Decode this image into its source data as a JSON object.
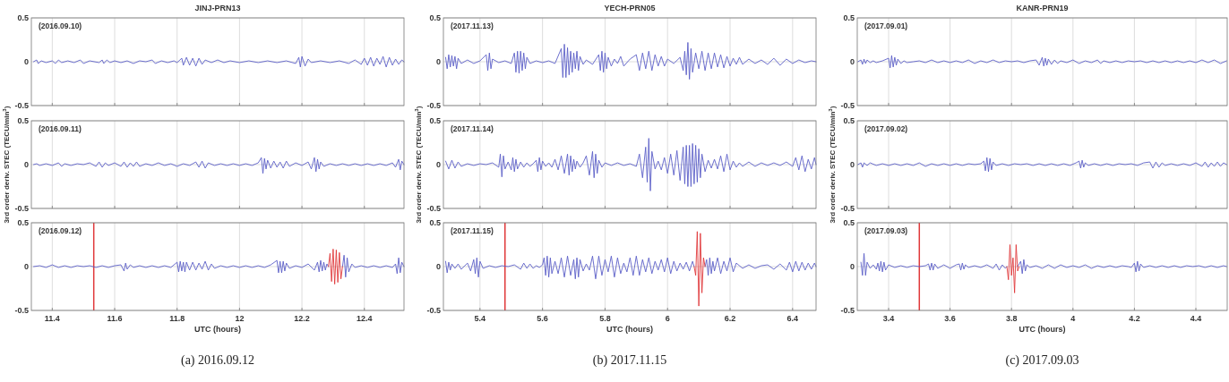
{
  "chart_data": [
    {
      "type": "line",
      "title": "JINJ-PRN13",
      "annotations": [
        "(2016.09.10)"
      ],
      "xlim": [
        11.333,
        12.527
      ],
      "xticks": [
        11.4,
        11.6,
        11.8,
        12,
        12.2,
        12.4
      ],
      "ylim": [
        -0.5,
        0.5
      ],
      "yticks": [
        -0.5,
        0,
        0.5
      ],
      "grid": true,
      "tick_labels": "y",
      "series": [
        {
          "color": "#5b5fc7",
          "x": [
            11.34,
            11.35,
            11.355,
            11.365,
            11.38,
            11.4,
            11.41,
            11.42,
            11.43,
            11.45,
            11.47,
            11.49,
            11.5,
            11.52,
            11.55,
            11.56,
            11.565,
            11.575,
            11.585,
            11.6,
            11.62,
            11.64,
            11.66,
            11.68,
            11.7,
            11.72,
            11.73,
            11.75,
            11.77,
            11.79,
            11.8,
            11.815,
            11.82,
            11.83,
            11.84,
            11.85,
            11.86,
            11.87,
            11.88,
            11.89,
            11.91,
            11.93,
            11.95,
            11.97,
            12.0,
            12.03,
            12.06,
            12.09,
            12.12,
            12.15,
            12.18,
            12.19,
            12.195,
            12.2,
            12.21,
            12.22,
            12.23,
            12.26,
            12.29,
            12.32,
            12.35,
            12.37,
            12.39,
            12.4,
            12.41,
            12.42,
            12.43,
            12.44,
            12.45,
            12.46,
            12.47,
            12.48,
            12.49,
            12.5,
            12.51,
            12.52,
            12.527
          ],
          "values": [
            0,
            0.02,
            -0.02,
            0.01,
            -0.01,
            0.01,
            -0.02,
            0.02,
            -0.01,
            0.01,
            -0.01,
            0.02,
            -0.02,
            0.01,
            -0.01,
            0.02,
            -0.02,
            0.02,
            -0.01,
            0.01,
            -0.01,
            0.01,
            -0.02,
            0.01,
            0,
            0.02,
            -0.02,
            0.01,
            -0.01,
            0.01,
            -0.01,
            0.04,
            -0.04,
            0.05,
            -0.04,
            0.04,
            -0.05,
            0.04,
            -0.03,
            0.02,
            -0.01,
            0.02,
            -0.01,
            0.01,
            -0.01,
            0.01,
            -0.01,
            0.01,
            -0.01,
            0.01,
            -0.02,
            0.05,
            -0.06,
            0.06,
            -0.05,
            0.03,
            -0.01,
            0.01,
            -0.01,
            0.01,
            -0.02,
            0.02,
            -0.03,
            0.04,
            -0.04,
            0.05,
            -0.05,
            0.04,
            -0.03,
            0.06,
            -0.06,
            0.05,
            -0.04,
            0.03,
            -0.03,
            0.02,
            0
          ]
        }
      ]
    },
    {
      "type": "line",
      "title": "YECH-PRN05",
      "annotations": [
        "(2017.11.13)"
      ],
      "xlim": [
        5.283,
        6.475
      ],
      "xticks": [
        5.4,
        5.6,
        5.8,
        6,
        6.2,
        6.4
      ],
      "ylim": [
        -0.5,
        0.5
      ],
      "yticks": [
        -0.5,
        0,
        0.5
      ],
      "grid": true,
      "tick_labels": "y",
      "series": [
        {
          "color": "#5b5fc7",
          "x": [
            5.29,
            5.295,
            5.3,
            5.305,
            5.31,
            5.315,
            5.32,
            5.325,
            5.33,
            5.34,
            5.36,
            5.38,
            5.4,
            5.42,
            5.425,
            5.43,
            5.435,
            5.44,
            5.46,
            5.48,
            5.5,
            5.51,
            5.515,
            5.52,
            5.525,
            5.53,
            5.535,
            5.54,
            5.545,
            5.55,
            5.56,
            5.58,
            5.6,
            5.62,
            5.64,
            5.66,
            5.665,
            5.67,
            5.675,
            5.68,
            5.685,
            5.69,
            5.695,
            5.7,
            5.705,
            5.71,
            5.715,
            5.72,
            5.73,
            5.74,
            5.76,
            5.78,
            5.785,
            5.79,
            5.795,
            5.8,
            5.805,
            5.81,
            5.82,
            5.83,
            5.84,
            5.85,
            5.86,
            5.88,
            5.9,
            5.91,
            5.92,
            5.93,
            5.94,
            5.95,
            5.96,
            5.97,
            5.98,
            5.99,
            6.0,
            6.02,
            6.04,
            6.05,
            6.055,
            6.06,
            6.065,
            6.07,
            6.075,
            6.08,
            6.09,
            6.1,
            6.11,
            6.12,
            6.13,
            6.14,
            6.15,
            6.16,
            6.17,
            6.18,
            6.19,
            6.2,
            6.21,
            6.22,
            6.23,
            6.24,
            6.26,
            6.28,
            6.3,
            6.32,
            6.34,
            6.36,
            6.38,
            6.4,
            6.42,
            6.44,
            6.46,
            6.475
          ],
          "values": [
            0.05,
            -0.08,
            0.08,
            -0.06,
            0.07,
            -0.05,
            0.06,
            -0.08,
            0.04,
            -0.02,
            0.02,
            -0.02,
            0.01,
            0.08,
            -0.1,
            0.1,
            -0.08,
            0.03,
            -0.01,
            0.01,
            -0.02,
            0.1,
            -0.12,
            0.12,
            -0.13,
            0.12,
            -0.1,
            0.1,
            -0.08,
            0.05,
            -0.02,
            0.01,
            -0.01,
            0.01,
            -0.02,
            0.15,
            -0.18,
            0.2,
            -0.18,
            0.16,
            -0.15,
            0.12,
            -0.12,
            0.1,
            -0.08,
            0.12,
            -0.1,
            0.06,
            -0.03,
            0.02,
            -0.03,
            0.08,
            -0.1,
            0.12,
            -0.12,
            0.1,
            -0.08,
            0.05,
            -0.05,
            0.03,
            -0.02,
            0.06,
            -0.05,
            0.03,
            0.08,
            -0.1,
            0.1,
            -0.08,
            0.12,
            -0.1,
            0.08,
            -0.05,
            0.06,
            -0.05,
            0.03,
            -0.02,
            0.05,
            -0.1,
            0.12,
            -0.15,
            0.22,
            -0.2,
            0.15,
            -0.12,
            0.1,
            -0.08,
            0.12,
            -0.1,
            0.1,
            -0.08,
            0.1,
            -0.06,
            0.08,
            -0.07,
            0.06,
            -0.05,
            0.04,
            -0.03,
            0.05,
            -0.03,
            0.03,
            -0.02,
            0.02,
            -0.03,
            0.04,
            -0.04,
            0.03,
            -0.02,
            0.02,
            -0.01,
            0.01,
            0
          ]
        }
      ]
    },
    {
      "type": "line",
      "title": "KANR-PRN19",
      "annotations": [
        "(2017.09.01)"
      ],
      "xlim": [
        3.298,
        4.502
      ],
      "xticks": [
        3.4,
        3.6,
        3.8,
        4,
        4.2,
        4.4
      ],
      "ylim": [
        -0.5,
        0.5
      ],
      "yticks": [
        -0.5,
        0,
        0.5
      ],
      "grid": true,
      "tick_labels": "y",
      "series": [
        {
          "color": "#5b5fc7",
          "x": [
            3.3,
            3.31,
            3.315,
            3.32,
            3.325,
            3.33,
            3.34,
            3.35,
            3.36,
            3.37,
            3.38,
            3.4,
            3.405,
            3.41,
            3.415,
            3.42,
            3.425,
            3.43,
            3.44,
            3.45,
            3.46,
            3.48,
            3.5,
            3.52,
            3.54,
            3.56,
            3.58,
            3.6,
            3.62,
            3.64,
            3.66,
            3.68,
            3.7,
            3.72,
            3.74,
            3.76,
            3.78,
            3.8,
            3.82,
            3.84,
            3.86,
            3.88,
            3.89,
            3.9,
            3.905,
            3.91,
            3.915,
            3.92,
            3.93,
            3.94,
            3.95,
            3.96,
            3.98,
            4.0,
            4.02,
            4.04,
            4.06,
            4.08,
            4.09,
            4.1,
            4.12,
            4.14,
            4.16,
            4.18,
            4.2,
            4.22,
            4.24,
            4.26,
            4.28,
            4.3,
            4.32,
            4.34,
            4.36,
            4.38,
            4.4,
            4.42,
            4.44,
            4.46,
            4.48,
            4.5
          ],
          "values": [
            0,
            0.02,
            -0.03,
            0.03,
            -0.02,
            0.02,
            -0.01,
            0.01,
            -0.01,
            0,
            0.01,
            0.04,
            -0.07,
            0.07,
            -0.06,
            0.05,
            -0.04,
            0.03,
            -0.02,
            0.01,
            -0.01,
            0,
            0.01,
            -0.01,
            0.02,
            -0.01,
            0.01,
            -0.01,
            0.01,
            -0.01,
            0.02,
            -0.02,
            0.01,
            -0.01,
            0.02,
            -0.01,
            0.01,
            0,
            0.01,
            -0.01,
            0.01,
            0.02,
            -0.04,
            0.05,
            -0.05,
            0.04,
            -0.04,
            0.03,
            -0.03,
            0.02,
            -0.02,
            0.01,
            -0.01,
            0.02,
            -0.02,
            0.01,
            -0.01,
            0.02,
            -0.02,
            0.01,
            -0.01,
            0.01,
            -0.01,
            0.01,
            0,
            0.01,
            -0.01,
            0.01,
            -0.01,
            0.01,
            -0.01,
            0.01,
            -0.01,
            0.01,
            -0.01,
            0.02,
            -0.01,
            0.02,
            -0.02,
            0.01
          ]
        }
      ]
    },
    {
      "type": "line",
      "annotations": [
        "(2016.09.11)"
      ],
      "xlim": [
        11.333,
        12.527
      ],
      "xticks": [
        11.4,
        11.6,
        11.8,
        12,
        12.2,
        12.4
      ],
      "ylim": [
        -0.5,
        0.5
      ],
      "yticks": [
        -0.5,
        0,
        0.5
      ],
      "grid": true,
      "tick_labels": "y",
      "ylabel": "3rd order deriv. STEC (TECU/min$^{3}$)",
      "series": [
        {
          "color": "#5b5fc7",
          "x": [
            11.34,
            11.35,
            11.36,
            11.38,
            11.4,
            11.42,
            11.43,
            11.44,
            11.46,
            11.48,
            11.5,
            11.52,
            11.54,
            11.55,
            11.56,
            11.57,
            11.58,
            11.6,
            11.62,
            11.63,
            11.64,
            11.65,
            11.66,
            11.67,
            11.68,
            11.7,
            11.72,
            11.74,
            11.76,
            11.78,
            11.8,
            11.82,
            11.84,
            11.86,
            11.87,
            11.88,
            11.89,
            11.9,
            11.92,
            11.94,
            11.96,
            11.98,
            12.0,
            12.02,
            12.04,
            12.06,
            12.07,
            12.075,
            12.08,
            12.085,
            12.09,
            12.1,
            12.11,
            12.12,
            12.13,
            12.14,
            12.15,
            12.16,
            12.18,
            12.2,
            12.22,
            12.23,
            12.24,
            12.245,
            12.25,
            12.255,
            12.26,
            12.27,
            12.29,
            12.31,
            12.33,
            12.35,
            12.37,
            12.39,
            12.41,
            12.43,
            12.45,
            12.47,
            12.49,
            12.5,
            12.51,
            12.515,
            12.52,
            12.527
          ],
          "values": [
            0,
            0.01,
            -0.01,
            0.01,
            -0.01,
            0.02,
            -0.02,
            0.01,
            -0.01,
            0.01,
            0,
            0.02,
            -0.02,
            0.03,
            -0.03,
            0.02,
            -0.01,
            0.02,
            -0.02,
            0.03,
            -0.03,
            0.02,
            -0.02,
            0.03,
            -0.02,
            0.01,
            -0.01,
            0.02,
            -0.01,
            0.01,
            -0.02,
            0.01,
            -0.01,
            0.03,
            -0.03,
            0.04,
            -0.04,
            0.02,
            -0.01,
            0.01,
            -0.01,
            0.01,
            -0.01,
            0.01,
            -0.01,
            0.02,
            0.08,
            -0.1,
            0.07,
            -0.05,
            0.05,
            -0.04,
            0.04,
            -0.03,
            0.03,
            -0.04,
            0.04,
            -0.02,
            0.02,
            -0.01,
            0.03,
            -0.05,
            0.08,
            -0.08,
            0.06,
            -0.05,
            0.03,
            -0.02,
            0.01,
            -0.01,
            0.01,
            -0.01,
            0.01,
            -0.01,
            0.01,
            -0.01,
            0.01,
            -0.01,
            0.02,
            -0.03,
            0.06,
            -0.06,
            0.04,
            0
          ]
        }
      ]
    },
    {
      "type": "line",
      "annotations": [
        "(2017.11.14)"
      ],
      "xlim": [
        5.283,
        6.475
      ],
      "xticks": [
        5.4,
        5.6,
        5.8,
        6,
        6.2,
        6.4
      ],
      "ylim": [
        -0.5,
        0.5
      ],
      "yticks": [
        -0.5,
        0,
        0.5
      ],
      "grid": true,
      "tick_labels": "y",
      "ylabel": "3rd order deriv. STEC (TECU/min$^{3}$)",
      "series": [
        {
          "color": "#5b5fc7",
          "x": [
            5.29,
            5.3,
            5.31,
            5.32,
            5.33,
            5.34,
            5.36,
            5.38,
            5.4,
            5.42,
            5.44,
            5.46,
            5.465,
            5.47,
            5.475,
            5.48,
            5.49,
            5.5,
            5.505,
            5.51,
            5.515,
            5.52,
            5.53,
            5.54,
            5.55,
            5.56,
            5.57,
            5.58,
            5.585,
            5.59,
            5.595,
            5.6,
            5.61,
            5.62,
            5.63,
            5.64,
            5.65,
            5.66,
            5.67,
            5.68,
            5.685,
            5.69,
            5.695,
            5.7,
            5.705,
            5.71,
            5.72,
            5.73,
            5.74,
            5.75,
            5.76,
            5.765,
            5.77,
            5.775,
            5.78,
            5.79,
            5.8,
            5.82,
            5.84,
            5.86,
            5.88,
            5.9,
            5.91,
            5.92,
            5.93,
            5.935,
            5.94,
            5.945,
            5.95,
            5.96,
            5.97,
            5.98,
            5.99,
            6.0,
            6.01,
            6.02,
            6.03,
            6.04,
            6.05,
            6.055,
            6.06,
            6.065,
            6.07,
            6.075,
            6.08,
            6.085,
            6.09,
            6.095,
            6.1,
            6.105,
            6.11,
            6.12,
            6.13,
            6.14,
            6.15,
            6.16,
            6.17,
            6.18,
            6.19,
            6.2,
            6.21,
            6.22,
            6.23,
            6.24,
            6.26,
            6.28,
            6.3,
            6.32,
            6.34,
            6.36,
            6.38,
            6.4,
            6.41,
            6.42,
            6.43,
            6.44,
            6.45,
            6.46,
            6.47,
            6.475
          ],
          "values": [
            0.04,
            -0.05,
            0.05,
            -0.04,
            0.03,
            -0.02,
            0.01,
            -0.01,
            0.01,
            0,
            0.02,
            -0.03,
            0.12,
            -0.14,
            0.1,
            -0.05,
            0.03,
            -0.06,
            0.08,
            -0.08,
            0.06,
            -0.05,
            0.03,
            -0.03,
            0.02,
            -0.02,
            0.01,
            0.05,
            -0.08,
            0.08,
            -0.06,
            0.04,
            -0.02,
            0.02,
            -0.03,
            0.06,
            -0.06,
            0.1,
            -0.1,
            0.12,
            -0.12,
            0.1,
            -0.08,
            0.06,
            -0.05,
            0.04,
            -0.03,
            0.02,
            0.1,
            -0.12,
            0.15,
            -0.15,
            0.12,
            -0.1,
            0.05,
            -0.03,
            0.02,
            -0.01,
            0.02,
            -0.01,
            0.01,
            -0.02,
            0.12,
            -0.15,
            0.2,
            -0.2,
            0.3,
            -0.3,
            0.15,
            -0.05,
            0.04,
            -0.06,
            0.08,
            -0.1,
            0.12,
            -0.12,
            0.16,
            -0.18,
            0.2,
            -0.22,
            0.22,
            -0.25,
            0.22,
            -0.25,
            0.24,
            -0.22,
            0.22,
            -0.2,
            0.18,
            -0.15,
            0.12,
            -0.08,
            0.05,
            -0.04,
            0.06,
            -0.05,
            0.1,
            -0.08,
            0.12,
            -0.06,
            0.04,
            -0.03,
            0.02,
            -0.02,
            0.03,
            -0.02,
            0.02,
            -0.01,
            0.02,
            -0.01,
            0.03,
            -0.02,
            0.08,
            -0.06,
            0.1,
            -0.08,
            0.06,
            -0.05,
            0.08,
            0
          ]
        }
      ]
    },
    {
      "type": "line",
      "annotations": [
        "(2017.09.02)"
      ],
      "xlim": [
        3.298,
        4.502
      ],
      "xticks": [
        3.4,
        3.6,
        3.8,
        4,
        4.2,
        4.4
      ],
      "ylim": [
        -0.5,
        0.5
      ],
      "yticks": [
        -0.5,
        0,
        0.5
      ],
      "grid": true,
      "tick_labels": "y",
      "ylabel": "3rd order deriv. STEC (TECU/min$^{3}$)",
      "series": [
        {
          "color": "#5b5fc7",
          "x": [
            3.3,
            3.31,
            3.315,
            3.32,
            3.33,
            3.34,
            3.36,
            3.38,
            3.4,
            3.42,
            3.44,
            3.46,
            3.48,
            3.5,
            3.52,
            3.54,
            3.56,
            3.58,
            3.6,
            3.62,
            3.64,
            3.66,
            3.68,
            3.7,
            3.71,
            3.715,
            3.72,
            3.725,
            3.73,
            3.735,
            3.74,
            3.75,
            3.77,
            3.79,
            3.81,
            3.83,
            3.85,
            3.87,
            3.89,
            3.91,
            3.93,
            3.95,
            3.97,
            3.99,
            4.01,
            4.02,
            4.025,
            4.03,
            4.035,
            4.04,
            4.05,
            4.07,
            4.09,
            4.11,
            4.13,
            4.15,
            4.17,
            4.19,
            4.21,
            4.23,
            4.25,
            4.26,
            4.27,
            4.28,
            4.29,
            4.3,
            4.32,
            4.34,
            4.36,
            4.38,
            4.4,
            4.42,
            4.43,
            4.44,
            4.45,
            4.46,
            4.47,
            4.48,
            4.49,
            4.5
          ],
          "values": [
            0,
            0.02,
            -0.03,
            0.02,
            -0.01,
            0.02,
            -0.01,
            0.01,
            -0.01,
            0.01,
            -0.01,
            0.01,
            -0.01,
            0.02,
            -0.02,
            0.01,
            -0.01,
            0.01,
            -0.01,
            0.01,
            -0.01,
            0.01,
            0,
            0.01,
            0.04,
            -0.07,
            0.08,
            -0.08,
            0.07,
            -0.06,
            0.03,
            -0.01,
            0.01,
            -0.01,
            0.01,
            0,
            0.01,
            -0.01,
            0.01,
            -0.01,
            0.01,
            -0.01,
            0.01,
            -0.01,
            0.02,
            0.04,
            -0.04,
            0.05,
            -0.03,
            0.02,
            -0.01,
            0.01,
            -0.01,
            0.01,
            -0.01,
            0.01,
            0,
            0.01,
            -0.01,
            0.02,
            0.03,
            -0.04,
            0.03,
            -0.03,
            0.02,
            -0.01,
            0.01,
            -0.01,
            0.01,
            -0.01,
            0.02,
            -0.02,
            0.03,
            -0.03,
            0.02,
            -0.02,
            0.03,
            -0.02,
            0.02,
            0
          ]
        }
      ]
    },
    {
      "type": "line",
      "annotations": [
        "(2016.09.12)",
        "(a) 2016.09.12"
      ],
      "xlabel": "UTC (hours)",
      "xlim": [
        11.333,
        12.527
      ],
      "xticks": [
        11.4,
        11.6,
        11.8,
        12,
        12.2,
        12.4
      ],
      "ylim": [
        -0.5,
        0.5
      ],
      "yticks": [
        -0.5,
        0,
        0.5
      ],
      "grid": true,
      "ref_lines": [
        {
          "axis": "x",
          "value": 11.533,
          "color": "#e0383a"
        }
      ],
      "series": [
        {
          "color": "#5b5fc7",
          "x": [
            11.34,
            11.36,
            11.38,
            11.4,
            11.42,
            11.44,
            11.46,
            11.48,
            11.5,
            11.52,
            11.54,
            11.56,
            11.58,
            11.6,
            11.62,
            11.63,
            11.635,
            11.64,
            11.65,
            11.66,
            11.68,
            11.7,
            11.72,
            11.74,
            11.76,
            11.78,
            11.8,
            11.805,
            11.81,
            11.815,
            11.82,
            11.825,
            11.83,
            11.84,
            11.85,
            11.86,
            11.87,
            11.88,
            11.89,
            11.9,
            11.91,
            11.92,
            11.94,
            11.96,
            11.98,
            12.0,
            12.02,
            12.04,
            12.06,
            12.08,
            12.1,
            12.12,
            12.125,
            12.13,
            12.135,
            12.14,
            12.145,
            12.15,
            12.16,
            12.18,
            12.2,
            12.22,
            12.24,
            12.25,
            12.255,
            12.26,
            12.265,
            12.27,
            12.275,
            12.28,
            12.285,
            12.3,
            12.33,
            12.335,
            12.34,
            12.345,
            12.35,
            12.36,
            12.37,
            12.39,
            12.41,
            12.43,
            12.45,
            12.47,
            12.49,
            12.5,
            12.505,
            12.51,
            12.515,
            12.52,
            12.527
          ],
          "values": [
            0,
            0.01,
            -0.01,
            0.02,
            -0.01,
            0.01,
            -0.01,
            0.01,
            0,
            0.01,
            -0.01,
            0.01,
            -0.01,
            0.01,
            0.02,
            -0.05,
            0.04,
            -0.03,
            0.02,
            -0.01,
            0.01,
            -0.01,
            0.01,
            -0.01,
            0.01,
            -0.01,
            0.05,
            -0.06,
            0.06,
            -0.05,
            0.05,
            -0.06,
            0.05,
            -0.04,
            0.05,
            -0.04,
            0.04,
            -0.03,
            0.06,
            -0.04,
            0.03,
            -0.02,
            0.01,
            -0.01,
            0.01,
            -0.01,
            0.01,
            -0.01,
            0.01,
            -0.01,
            0.02,
            0.07,
            -0.07,
            0.06,
            -0.07,
            0.06,
            -0.05,
            0.04,
            -0.02,
            0.01,
            -0.01,
            0.03,
            -0.04,
            0.05,
            -0.06,
            0.07,
            -0.05,
            0.05,
            -0.04,
            0.03,
            0,
            null,
            0,
            0.13,
            -0.12,
            0.1,
            -0.06,
            0.03,
            -0.01,
            0.01,
            -0.01,
            0.01,
            -0.01,
            0.01,
            -0.01,
            0.03,
            -0.08,
            0.1,
            -0.07,
            0.05,
            0
          ]
        },
        {
          "color": "#e0383a",
          "x": [
            12.285,
            12.29,
            12.295,
            12.3,
            12.305,
            12.31,
            12.315,
            12.32,
            12.325,
            12.33
          ],
          "values": [
            0,
            0.15,
            -0.17,
            0.2,
            -0.2,
            0.19,
            -0.18,
            0.16,
            -0.14,
            0
          ]
        }
      ]
    },
    {
      "type": "line",
      "annotations": [
        "(2017.11.15)",
        "(b) 2017.11.15"
      ],
      "xlabel": "UTC (hours)",
      "xlim": [
        5.283,
        6.475
      ],
      "xticks": [
        5.4,
        5.6,
        5.8,
        6,
        6.2,
        6.4
      ],
      "ylim": [
        -0.5,
        0.5
      ],
      "yticks": [
        -0.5,
        0,
        0.5
      ],
      "grid": true,
      "ref_lines": [
        {
          "axis": "x",
          "value": 5.48,
          "color": "#e0383a"
        }
      ],
      "series": [
        {
          "color": "#5b5fc7",
          "x": [
            5.29,
            5.295,
            5.3,
            5.305,
            5.31,
            5.32,
            5.33,
            5.34,
            5.36,
            5.37,
            5.38,
            5.385,
            5.39,
            5.395,
            5.4,
            5.41,
            5.43,
            5.45,
            5.47,
            5.49,
            5.51,
            5.53,
            5.54,
            5.55,
            5.56,
            5.57,
            5.58,
            5.59,
            5.6,
            5.605,
            5.61,
            5.615,
            5.62,
            5.625,
            5.63,
            5.64,
            5.65,
            5.66,
            5.67,
            5.68,
            5.69,
            5.7,
            5.705,
            5.71,
            5.715,
            5.72,
            5.73,
            5.74,
            5.75,
            5.76,
            5.77,
            5.78,
            5.79,
            5.8,
            5.81,
            5.82,
            5.83,
            5.84,
            5.85,
            5.86,
            5.87,
            5.88,
            5.89,
            5.9,
            5.91,
            5.92,
            5.93,
            5.94,
            5.95,
            5.96,
            5.97,
            5.98,
            5.99,
            6.0,
            6.01,
            6.02,
            6.03,
            6.04,
            6.05,
            6.06,
            6.07,
            6.08,
            6.085,
            6.1,
            6.12,
            6.125,
            6.13,
            6.135,
            6.14,
            6.145,
            6.15,
            6.16,
            6.17,
            6.18,
            6.19,
            6.2,
            6.21,
            6.22,
            6.24,
            6.26,
            6.28,
            6.3,
            6.32,
            6.34,
            6.36,
            6.38,
            6.39,
            6.4,
            6.41,
            6.42,
            6.43,
            6.44,
            6.45,
            6.46,
            6.47,
            6.475
          ],
          "values": [
            0.06,
            -0.07,
            0.05,
            -0.04,
            0.03,
            -0.02,
            0.03,
            -0.03,
            0.04,
            -0.05,
            0.08,
            -0.08,
            0.1,
            -0.12,
            0.06,
            -0.02,
            0.01,
            -0.01,
            0.01,
            0,
            0.02,
            -0.03,
            0.04,
            -0.02,
            0.03,
            -0.02,
            0.01,
            -0.01,
            0.02,
            0.1,
            -0.1,
            0.12,
            -0.12,
            0.1,
            -0.08,
            0.06,
            -0.08,
            0.1,
            -0.12,
            0.12,
            -0.1,
            0.08,
            -0.14,
            0.1,
            -0.12,
            0.08,
            -0.05,
            0.03,
            -0.04,
            0.12,
            -0.14,
            0.12,
            -0.1,
            0.08,
            -0.06,
            0.12,
            -0.12,
            0.1,
            -0.08,
            0.04,
            -0.06,
            0.1,
            -0.1,
            0.12,
            -0.1,
            0.08,
            -0.06,
            0.1,
            -0.08,
            0.06,
            -0.04,
            0.08,
            -0.06,
            0.1,
            -0.08,
            0.06,
            -0.05,
            0.04,
            -0.03,
            0.05,
            -0.05,
            0.06,
            0,
            null,
            0,
            0.08,
            -0.1,
            0.1,
            -0.08,
            0.06,
            -0.05,
            0.1,
            -0.08,
            0.06,
            -0.05,
            0.1,
            -0.06,
            0.04,
            -0.02,
            0.02,
            -0.02,
            0.01,
            0.02,
            -0.03,
            0.03,
            -0.04,
            0.05,
            -0.06,
            0.06,
            -0.05,
            0.05,
            -0.04,
            0.04,
            -0.03,
            0.04,
            0
          ]
        },
        {
          "color": "#e0383a",
          "x": [
            6.085,
            6.09,
            6.095,
            6.1,
            6.105,
            6.11,
            6.115,
            6.12
          ],
          "values": [
            0,
            -0.1,
            0.4,
            -0.45,
            0.38,
            -0.3,
            0.1,
            0
          ]
        }
      ]
    },
    {
      "type": "line",
      "annotations": [
        "(2017.09.03)",
        "(c) 2017.09.03"
      ],
      "xlabel": "UTC (hours)",
      "xlim": [
        3.298,
        4.502
      ],
      "xticks": [
        3.4,
        3.6,
        3.8,
        4,
        4.2,
        4.4
      ],
      "ylim": [
        -0.5,
        0.5
      ],
      "yticks": [
        -0.5,
        0,
        0.5
      ],
      "grid": true,
      "ref_lines": [
        {
          "axis": "x",
          "value": 3.5,
          "color": "#e0383a"
        }
      ],
      "series": [
        {
          "color": "#5b5fc7",
          "x": [
            3.31,
            3.315,
            3.32,
            3.325,
            3.33,
            3.34,
            3.35,
            3.36,
            3.365,
            3.37,
            3.375,
            3.38,
            3.385,
            3.39,
            3.4,
            3.42,
            3.44,
            3.46,
            3.48,
            3.5,
            3.52,
            3.53,
            3.535,
            3.54,
            3.545,
            3.55,
            3.56,
            3.58,
            3.6,
            3.62,
            3.63,
            3.635,
            3.64,
            3.645,
            3.65,
            3.66,
            3.68,
            3.7,
            3.72,
            3.74,
            3.75,
            3.76,
            3.77,
            3.78,
            3.785,
            3.8,
            3.82,
            3.83,
            3.835,
            3.84,
            3.845,
            3.85,
            3.86,
            3.88,
            3.9,
            3.92,
            3.94,
            3.96,
            3.98,
            4.0,
            4.02,
            4.04,
            4.06,
            4.08,
            4.1,
            4.12,
            4.14,
            4.16,
            4.18,
            4.19,
            4.2,
            4.205,
            4.21,
            4.215,
            4.22,
            4.23,
            4.25,
            4.27,
            4.29,
            4.31,
            4.33,
            4.35,
            4.37,
            4.39,
            4.41,
            4.43,
            4.45,
            4.47,
            4.49,
            4.5
          ],
          "values": [
            0.05,
            -0.1,
            0.15,
            -0.1,
            0.05,
            -0.02,
            0.02,
            -0.03,
            0.04,
            -0.05,
            0.06,
            -0.06,
            0.05,
            -0.04,
            0.02,
            -0.01,
            0.01,
            -0.01,
            0.01,
            0,
            0.01,
            0.03,
            -0.04,
            0.04,
            -0.04,
            0.03,
            -0.02,
            0.02,
            -0.02,
            0.02,
            0.03,
            -0.04,
            0.04,
            -0.03,
            0.02,
            -0.01,
            0.01,
            -0.01,
            0.02,
            -0.02,
            0.03,
            -0.04,
            0.02,
            -0.02,
            0,
            null,
            0,
            0.06,
            -0.08,
            0.08,
            -0.05,
            0.02,
            -0.01,
            0.01,
            -0.02,
            0.02,
            -0.02,
            0.02,
            -0.01,
            0.01,
            -0.01,
            0.02,
            -0.02,
            0.01,
            -0.01,
            0.01,
            -0.01,
            0.01,
            0,
            -0.01,
            0.04,
            -0.06,
            0.06,
            -0.05,
            0.03,
            -0.01,
            0.01,
            -0.01,
            0.01,
            -0.01,
            0.01,
            -0.01,
            0.01,
            0,
            0.01,
            -0.01,
            0.01,
            -0.01,
            0.01,
            0
          ]
        },
        {
          "color": "#e0383a",
          "x": [
            3.785,
            3.79,
            3.795,
            3.8,
            3.805,
            3.81,
            3.815,
            3.82,
            3.825
          ],
          "values": [
            0,
            -0.15,
            0.25,
            -0.1,
            0.1,
            -0.3,
            0.25,
            -0.05,
            0
          ]
        }
      ]
    }
  ]
}
